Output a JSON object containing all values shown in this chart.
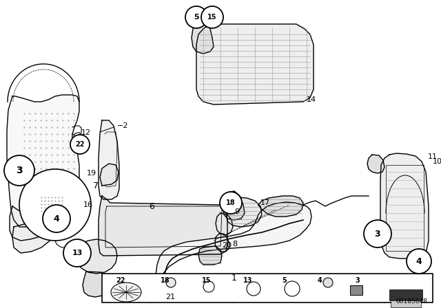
{
  "bg_color": "#ffffff",
  "line_color": "#000000",
  "diagram_id": "00185648",
  "fig_w": 6.4,
  "fig_h": 4.48,
  "dpi": 100
}
